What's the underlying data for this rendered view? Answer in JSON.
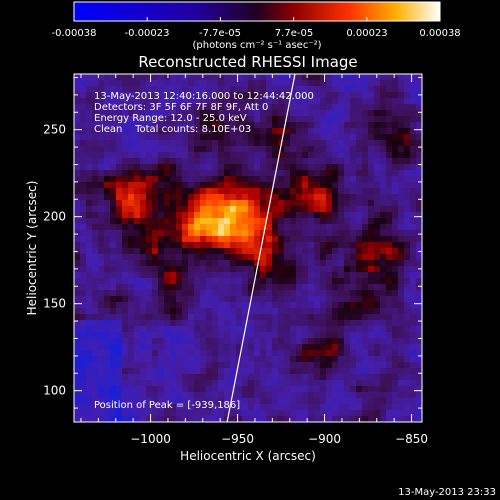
{
  "colorbar": {
    "ticks": [
      "-0.00038",
      "-0.00023",
      "-7.7e-05",
      "7.7e-05",
      "0.00023",
      "0.00038"
    ],
    "unit": "(photons cm⁻² s⁻¹ asec⁻²)"
  },
  "chart_data": {
    "type": "heatmap",
    "title": "Reconstructed RHESSI Image",
    "xlabel": "Heliocentric X (arcsec)",
    "ylabel": "Heliocentric Y (arcsec)",
    "xlim": [
      -1044,
      -844
    ],
    "ylim": [
      82,
      282
    ],
    "xticks": [
      -1000,
      -950,
      -900,
      -850
    ],
    "yticks": [
      100,
      150,
      200,
      250
    ],
    "xtick_labels": [
      "−1000",
      "−950",
      "−900",
      "−850"
    ],
    "ytick_labels": [
      "100",
      "150",
      "200",
      "250"
    ],
    "clim": [
      -0.00038,
      0.00038
    ],
    "colormap": "red-temperature with negative blue",
    "limb_line": [
      [
        -956,
        82
      ],
      [
        -917,
        282
      ]
    ],
    "peak": [
      -939,
      186
    ],
    "annotations": {
      "time_range": "13-May-2013 12:40:16.000 to 12:44:42.000",
      "detectors": "Detectors: 3F 5F 6F 7F 8F 9F, Att 0",
      "energy": "Energy Range: 12.0 - 25.0 keV",
      "clean": "Clean    Total counts: 8.10E+03",
      "peak_text": "Position of Peak = [-939,186]"
    }
  },
  "footer": {
    "timestamp": "13-May-2013 23:33"
  }
}
